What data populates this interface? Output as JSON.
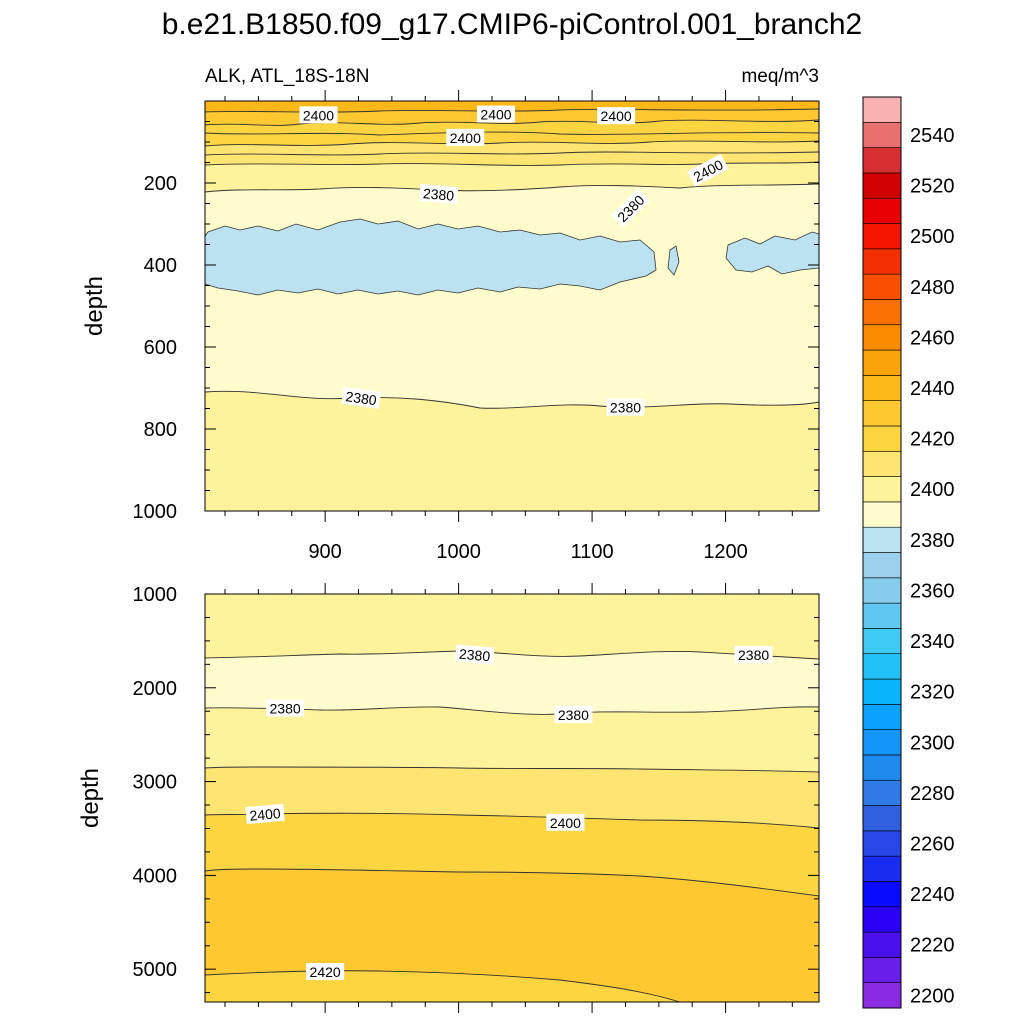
{
  "chart_data": {
    "type": "contour",
    "title": "b.e21.B1850.f09_g17.CMIP6-piControl.001_branch2",
    "variable_label": "ALK, ATL_18S-18N",
    "units_label": "meq/m^3",
    "ylabel": "depth",
    "xlim": [
      810,
      1270
    ],
    "x_ticks": [
      900,
      1000,
      1100,
      1200
    ],
    "panels": [
      {
        "name": "upper",
        "ylim": [
          0,
          1000
        ],
        "y_ticks": [
          200,
          400,
          600,
          800,
          1000
        ],
        "y_tick_labels": [
          "200",
          "400",
          "600",
          "800",
          "1000"
        ],
        "show_x_tick_labels": true,
        "contour_labels": [
          {
            "text": "2400",
            "x": 895,
            "y": 35,
            "rot": 0
          },
          {
            "text": "2400",
            "x": 1028,
            "y": 33,
            "rot": 0
          },
          {
            "text": "2400",
            "x": 1118,
            "y": 37,
            "rot": 0
          },
          {
            "text": "2400",
            "x": 1005,
            "y": 90,
            "rot": 0
          },
          {
            "text": "2400",
            "x": 1187,
            "y": 170,
            "rot": -28
          },
          {
            "text": "2380",
            "x": 985,
            "y": 228,
            "rot": 5
          },
          {
            "text": "2380",
            "x": 1129,
            "y": 262,
            "rot": -45
          },
          {
            "text": "2380",
            "x": 927,
            "y": 725,
            "rot": 8
          },
          {
            "text": "2380",
            "x": 1125,
            "y": 748,
            "rot": 0
          }
        ]
      },
      {
        "name": "lower",
        "ylim": [
          1000,
          5350
        ],
        "y_ticks": [
          1000,
          2000,
          3000,
          4000,
          5000
        ],
        "y_tick_labels": [
          "1000",
          "2000",
          "3000",
          "4000",
          "5000"
        ],
        "show_x_tick_labels": false,
        "contour_labels": [
          {
            "text": "2380",
            "x": 1012,
            "y": 1650,
            "rot": 5
          },
          {
            "text": "2380",
            "x": 1221,
            "y": 1650,
            "rot": 0
          },
          {
            "text": "2380",
            "x": 870,
            "y": 2220,
            "rot": 0
          },
          {
            "text": "2380",
            "x": 1086,
            "y": 2290,
            "rot": 0
          },
          {
            "text": "2400",
            "x": 855,
            "y": 3350,
            "rot": -5
          },
          {
            "text": "2400",
            "x": 1080,
            "y": 3440,
            "rot": 0
          },
          {
            "text": "2420",
            "x": 900,
            "y": 5030,
            "rot": 0
          }
        ]
      }
    ],
    "colorbar": {
      "levels": [
        2200,
        2210,
        2220,
        2230,
        2240,
        2250,
        2260,
        2270,
        2280,
        2290,
        2300,
        2310,
        2320,
        2330,
        2340,
        2350,
        2360,
        2370,
        2380,
        2390,
        2400,
        2410,
        2420,
        2430,
        2440,
        2450,
        2460,
        2470,
        2480,
        2490,
        2500,
        2510,
        2520,
        2530,
        2540,
        2550
      ],
      "labels": [
        "2200",
        "2220",
        "2240",
        "2260",
        "2280",
        "2300",
        "2320",
        "2340",
        "2360",
        "2380",
        "2400",
        "2420",
        "2440",
        "2460",
        "2480",
        "2500",
        "2520",
        "2540"
      ],
      "label_values": [
        2200,
        2220,
        2240,
        2260,
        2280,
        2300,
        2320,
        2340,
        2360,
        2380,
        2400,
        2420,
        2440,
        2460,
        2480,
        2500,
        2520,
        2540
      ],
      "colors": [
        "#8a2be2",
        "#6a1fe8",
        "#4b10ee",
        "#2a00f6",
        "#0a0afc",
        "#1a2cf0",
        "#2748e6",
        "#3060e0",
        "#2f7ae6",
        "#1f8aee",
        "#1496f8",
        "#0aa2fc",
        "#08b4fc",
        "#22c2f8",
        "#3ecaf4",
        "#60c8f0",
        "#86ccec",
        "#9cd2ee",
        "#bce2f2",
        "#fefccc",
        "#fef39a",
        "#fee470",
        "#fdd540",
        "#fec830",
        "#fcb818",
        "#fba40a",
        "#fa8a00",
        "#f97000",
        "#f85000",
        "#f53000",
        "#f41400",
        "#e80000",
        "#d00000",
        "#d83030",
        "#e87070",
        "#f8b0b0"
      ]
    }
  }
}
